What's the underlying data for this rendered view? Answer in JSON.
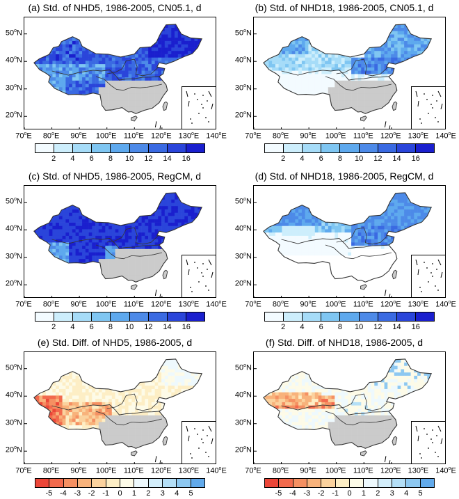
{
  "panels": [
    {
      "title": "(a) Std. of NHD5, 1986-2005, CN05.1, d",
      "variant": "nhd5_obs",
      "colorbar": "seq"
    },
    {
      "title": "(b) Std. of NHD18, 1986-2005, CN05.1, d",
      "variant": "nhd18_obs",
      "colorbar": "seq"
    },
    {
      "title": "(c) Std. of NHD5, 1986-2005, RegCM, d",
      "variant": "nhd5_mod",
      "colorbar": "seq"
    },
    {
      "title": "(d) Std. of NHD18, 1986-2005, RegCM, d",
      "variant": "nhd18_mod",
      "colorbar": "seq"
    },
    {
      "title": "(e) Std. Diff. of NHD5, 1986-2005, d",
      "variant": "nhd5_diff",
      "colorbar": "div"
    },
    {
      "title": "(f) Std. Diff. of NHD18, 1986-2005, d",
      "variant": "nhd18_diff",
      "colorbar": "div"
    }
  ],
  "axes": {
    "lat_labels": [
      "50",
      "40",
      "30",
      "20"
    ],
    "lat_suffix": "N",
    "lon_labels": [
      "70",
      "80",
      "90",
      "100",
      "110",
      "120",
      "130",
      "140"
    ],
    "lon_suffix": "E",
    "degree": "o"
  },
  "colorbars": {
    "seq": {
      "labels": [
        "2",
        "4",
        "6",
        "8",
        "10",
        "12",
        "14",
        "16"
      ],
      "colors": [
        "#f3fbff",
        "#cdeefc",
        "#a6dcf8",
        "#7fc6f2",
        "#5ea9ee",
        "#4d8ae8",
        "#3a6ae2",
        "#2a45da",
        "#1a1fce"
      ]
    },
    "div": {
      "labels": [
        "-5",
        "-4",
        "-3",
        "-2",
        "-1",
        "0",
        "1",
        "2",
        "3",
        "4",
        "5"
      ],
      "colors": [
        "#ec4638",
        "#f26a4d",
        "#f59062",
        "#f8b27b",
        "#fbd29e",
        "#fdeec5",
        "#fdfbe8",
        "#eef9fd",
        "#d3eefb",
        "#b4dff7",
        "#8dc8f1",
        "#62aaeb"
      ]
    }
  },
  "palette": {
    "land_masked": "#cbcbcb",
    "outline": "#333333"
  }
}
